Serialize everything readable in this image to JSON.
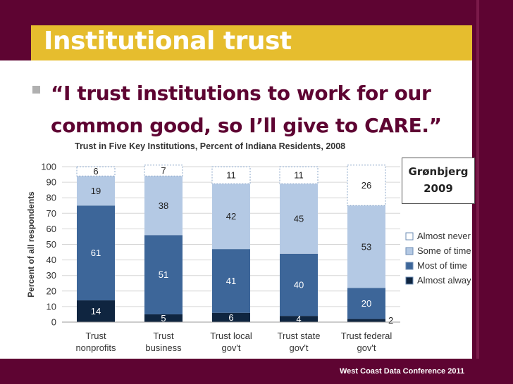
{
  "slide": {
    "title": "Institutional trust",
    "quote_line1": "“I trust institutions to work for our",
    "quote_line2": "common good, so I’ll give to CARE.”",
    "citation_name": "Grønbjerg",
    "citation_year": "2009",
    "footer": "West Coast Data Conference 2011",
    "colors": {
      "maroon": "#5e0432",
      "gold": "#e6bd2e"
    }
  },
  "chart_data": {
    "type": "bar",
    "stacked": true,
    "title": "Trust in Five Key Institutions, Percent of Indiana Residents, 2008",
    "xlabel": "",
    "ylabel": "Percent of all respondents",
    "ylim": [
      0,
      100
    ],
    "yticks": [
      0,
      10,
      20,
      30,
      40,
      50,
      60,
      70,
      80,
      90,
      100
    ],
    "grid": true,
    "legend_position": "right",
    "categories": [
      [
        "Trust",
        "nonprofits"
      ],
      [
        "Trust",
        "business"
      ],
      [
        "Trust local",
        "gov't"
      ],
      [
        "Trust state",
        "gov't"
      ],
      [
        "Trust federal",
        "gov't"
      ]
    ],
    "series": [
      {
        "name": "Almost always",
        "color": "#0f2540",
        "values": [
          14,
          5,
          6,
          4,
          2
        ]
      },
      {
        "name": "Most of time",
        "color": "#3d6699",
        "values": [
          61,
          51,
          41,
          40,
          20
        ]
      },
      {
        "name": "Some of time",
        "color": "#b4c9e4",
        "values": [
          19,
          38,
          42,
          45,
          53
        ]
      },
      {
        "name": "Almost never",
        "color": "#ffffff",
        "values": [
          6,
          7,
          11,
          11,
          26
        ]
      }
    ]
  }
}
